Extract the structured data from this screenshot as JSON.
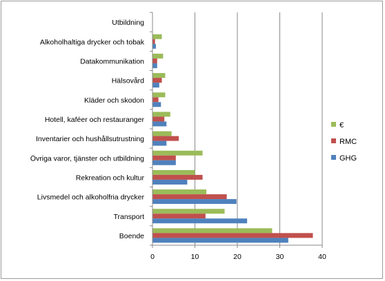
{
  "chart_data": {
    "type": "bar",
    "orientation": "horizontal",
    "categories": [
      "Utbildning",
      "Alkoholhaltiga drycker och tobak",
      "Datakommunikation",
      "Hälsovård",
      "Kläder och skodon",
      "Hotell, kaféer och restauranger",
      "Inventarier och hushållsutrustning",
      "Övriga varor, tjänster och utbildning",
      "Rekreation och kultur",
      "Livsmedel och alkoholfria drycker",
      "Transport",
      "Boende"
    ],
    "series": [
      {
        "name": "€",
        "color": "#9bbb59",
        "values": [
          0,
          2.2,
          2.5,
          3.0,
          3.0,
          4.2,
          4.5,
          11.8,
          10.0,
          12.7,
          17.0,
          28.2
        ]
      },
      {
        "name": "RMC",
        "color": "#c0504d",
        "values": [
          0,
          0.6,
          1.1,
          2.2,
          1.4,
          2.8,
          6.2,
          5.5,
          11.8,
          17.5,
          12.5,
          37.8
        ]
      },
      {
        "name": "GHG",
        "color": "#4f81bd",
        "values": [
          0,
          0.8,
          1.1,
          1.6,
          2.0,
          3.3,
          3.3,
          5.5,
          8.2,
          19.8,
          22.3,
          32.0
        ]
      }
    ],
    "xlim": [
      0,
      40
    ],
    "xticks": [
      "0",
      "10",
      "20",
      "30",
      "40"
    ],
    "grid": "vertical",
    "legend_position": "right"
  }
}
